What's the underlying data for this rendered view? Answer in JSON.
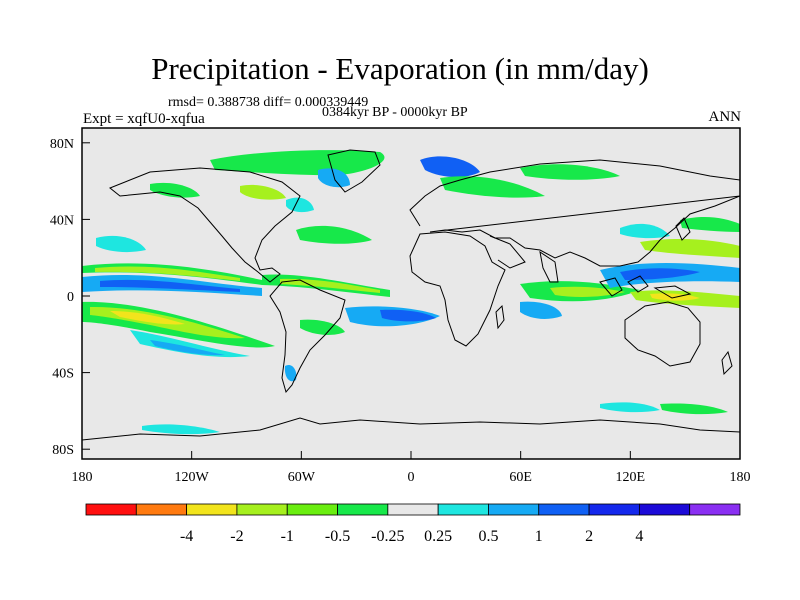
{
  "title": "Precipitation - Evaporation (in mm/day)",
  "stats": "rmsd= 0.388738 diff= 0.000339449",
  "experiment": "Expt = xqfU0-xqfua",
  "period": "0384kyr BP - 0000kyr BP",
  "season": "ANN",
  "lat_ticks": [
    {
      "label": "80N",
      "value": 80
    },
    {
      "label": "40N",
      "value": 40
    },
    {
      "label": "0",
      "value": 0
    },
    {
      "label": "40S",
      "value": -40
    },
    {
      "label": "80S",
      "value": -80
    }
  ],
  "lon_ticks": [
    {
      "label": "180",
      "value": -180
    },
    {
      "label": "120W",
      "value": -120
    },
    {
      "label": "60W",
      "value": -60
    },
    {
      "label": "0",
      "value": 0
    },
    {
      "label": "60E",
      "value": 60
    },
    {
      "label": "120E",
      "value": 120
    },
    {
      "label": "180",
      "value": 180
    }
  ],
  "colorbar": {
    "colors": [
      "#ff1010",
      "#ff7a10",
      "#f2e41c",
      "#a6f01e",
      "#6aee10",
      "#17e84a",
      "#e8e8e8",
      "#1ee6e0",
      "#16aaf4",
      "#1060f4",
      "#1428ec",
      "#1c0ad8",
      "#8a2ff2"
    ],
    "labels": [
      "-4",
      "-2",
      "-1",
      "-0.5",
      "-0.25",
      "0.25",
      "0.5",
      "1",
      "2",
      "4"
    ]
  },
  "map_colors": {
    "land_bg": "#e8e8e8",
    "coast": "#000000"
  }
}
